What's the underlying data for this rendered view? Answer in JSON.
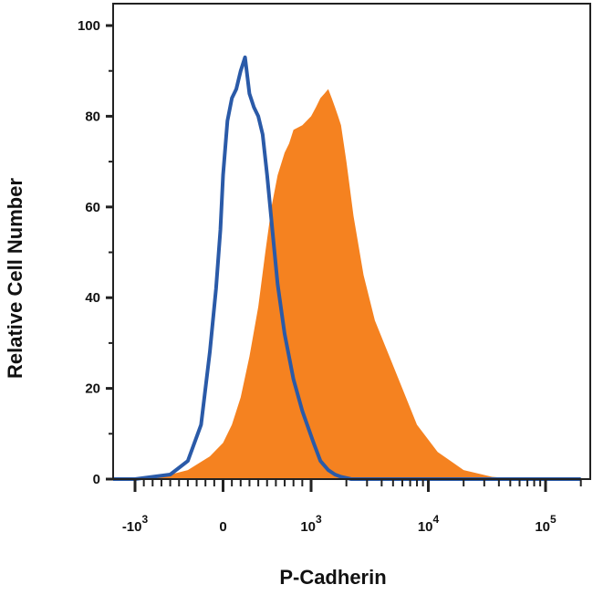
{
  "chart_data": {
    "type": "area",
    "title": "",
    "xlabel": "P-Cadherin",
    "ylabel": "Relative Cell Number",
    "x_scale": "biexponential",
    "ylim": [
      0,
      100
    ],
    "xlim": [
      -2000,
      200000
    ],
    "y_ticks": [
      {
        "value": 0,
        "label": "0"
      },
      {
        "value": 20,
        "label": "20"
      },
      {
        "value": 40,
        "label": "40"
      },
      {
        "value": 60,
        "label": "60"
      },
      {
        "value": 80,
        "label": "80"
      },
      {
        "value": 100,
        "label": "100"
      }
    ],
    "x_ticks": [
      {
        "value": -1000,
        "base": "-10",
        "exp": "3"
      },
      {
        "value": 0,
        "base": "0",
        "exp": ""
      },
      {
        "value": 1000,
        "base": "10",
        "exp": "3"
      },
      {
        "value": 10000,
        "base": "10",
        "exp": "4"
      },
      {
        "value": 100000,
        "base": "10",
        "exp": "5"
      }
    ],
    "grid": false,
    "series": [
      {
        "role": "isotype-control",
        "style": "line",
        "color": "#2a5aa8",
        "x": [
          -2000,
          -1000,
          -600,
          -400,
          -250,
          -150,
          -80,
          -30,
          0,
          50,
          100,
          150,
          200,
          250,
          300,
          350,
          400,
          450,
          500,
          560,
          620,
          700,
          800,
          900,
          1050,
          1200,
          1400,
          1600,
          1800,
          2200,
          3000,
          10000,
          200000
        ],
        "y": [
          0,
          0,
          1,
          4,
          12,
          28,
          42,
          55,
          67,
          79,
          84,
          86,
          90,
          93,
          85,
          82,
          80,
          76,
          67,
          55,
          43,
          32,
          22,
          15,
          8,
          4,
          2,
          1,
          0.5,
          0,
          0,
          0,
          0
        ]
      },
      {
        "role": "p-cadherin",
        "style": "filled",
        "color": "#f58220",
        "x": [
          -2000,
          -800,
          -400,
          -150,
          0,
          100,
          200,
          300,
          400,
          480,
          550,
          620,
          700,
          750,
          800,
          900,
          1000,
          1100,
          1200,
          1300,
          1400,
          1500,
          1600,
          1700,
          1800,
          2000,
          2300,
          2800,
          3500,
          4500,
          6000,
          8000,
          12000,
          20000,
          35000,
          60000,
          200000
        ],
        "y": [
          0,
          0,
          2,
          5,
          8,
          12,
          18,
          27,
          38,
          50,
          60,
          67,
          72,
          74,
          77,
          78,
          80,
          82,
          84,
          85,
          86,
          84,
          82,
          80,
          78,
          70,
          58,
          45,
          35,
          28,
          20,
          12,
          6,
          2,
          0.5,
          0,
          0
        ]
      }
    ]
  }
}
